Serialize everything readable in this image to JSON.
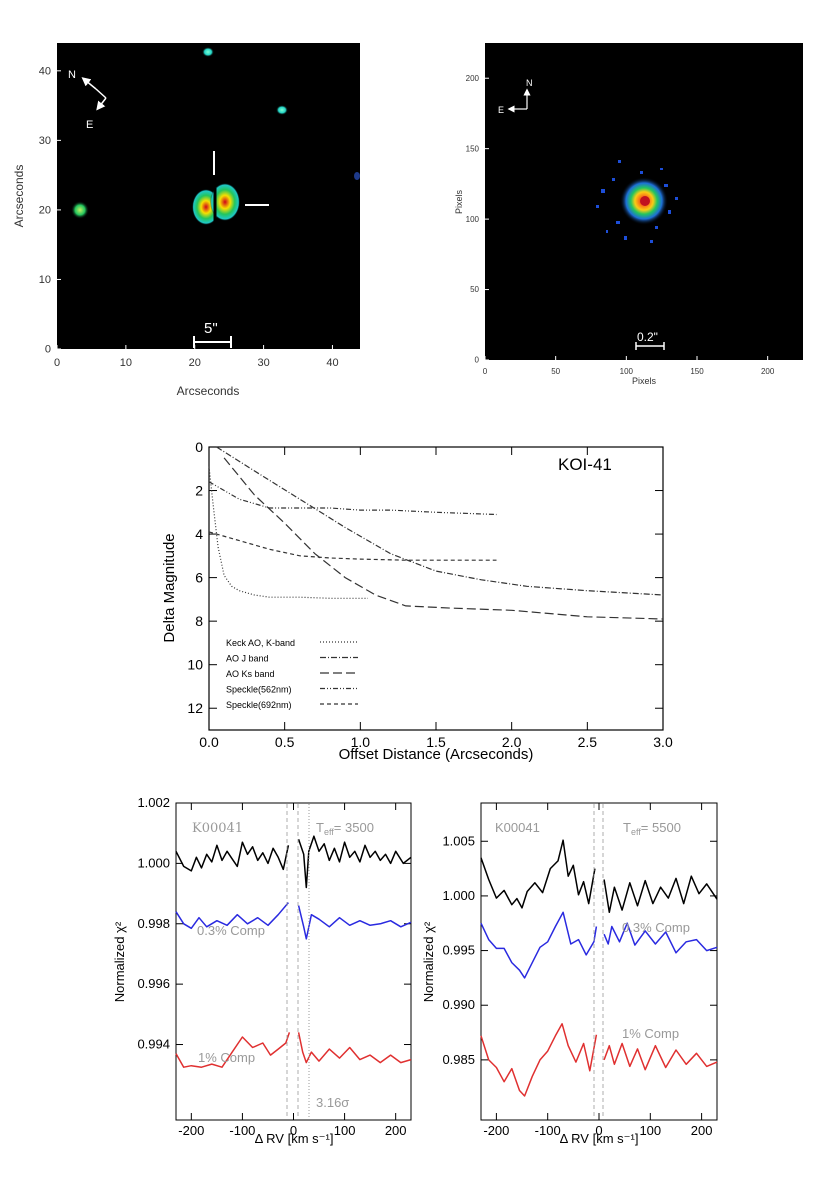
{
  "panels": {
    "image_left": {
      "xlabel": "Arcseconds",
      "ylabel": "Arcseconds",
      "xticks": [
        "0",
        "10",
        "20",
        "30",
        "40"
      ],
      "yticks": [
        "0",
        "10",
        "20",
        "30",
        "40"
      ],
      "compass": {
        "n": "N",
        "e": "E"
      },
      "scale_label": "5\""
    },
    "image_right": {
      "xlabel": "Pixels",
      "ylabel": "Pixels",
      "xticks": [
        "0",
        "50",
        "100",
        "150",
        "200"
      ],
      "yticks": [
        "0",
        "50",
        "100",
        "150",
        "200"
      ],
      "compass": {
        "n": "N",
        "e": "E"
      },
      "scale_label": "0.2\""
    }
  },
  "chart_data": [
    {
      "type": "line",
      "title": "KOI-41",
      "xlabel": "Offset Distance (Arcseconds)",
      "ylabel": "Delta Magnitude",
      "xlim": [
        0,
        3.0
      ],
      "ylim": [
        13,
        0
      ],
      "y_inverted": true,
      "xticks": [
        "0.0",
        "0.5",
        "1.0",
        "1.5",
        "2.0",
        "2.5",
        "3.0"
      ],
      "yticks": [
        "0",
        "2",
        "4",
        "6",
        "8",
        "10",
        "12"
      ],
      "legend_placement": "lower-left",
      "series": [
        {
          "name": "Keck AO, K-band",
          "style": "dotted",
          "x": [
            0.0,
            0.03,
            0.06,
            0.1,
            0.15,
            0.2,
            0.3,
            0.4,
            0.6,
            0.8,
            1.05
          ],
          "y": [
            0.9,
            2.8,
            4.6,
            5.9,
            6.4,
            6.6,
            6.8,
            6.9,
            6.9,
            6.95,
            6.95
          ]
        },
        {
          "name": "AO J band",
          "style": "dash-dot",
          "x": [
            0.05,
            0.3,
            0.6,
            0.9,
            1.2,
            1.5,
            1.8,
            2.1,
            2.5,
            3.0
          ],
          "y": [
            0.0,
            1.1,
            2.4,
            3.7,
            4.9,
            5.7,
            6.1,
            6.4,
            6.6,
            6.8
          ]
        },
        {
          "name": "AO Ks band",
          "style": "long-dash",
          "x": [
            0.1,
            0.3,
            0.5,
            0.7,
            0.9,
            1.1,
            1.3,
            1.6,
            2.0,
            2.5,
            3.0
          ],
          "y": [
            0.5,
            2.2,
            3.5,
            4.9,
            6.0,
            6.8,
            7.3,
            7.4,
            7.5,
            7.8,
            7.9
          ]
        },
        {
          "name": "Speckle(562nm)",
          "style": "dash-dot-dot",
          "x": [
            0.0,
            0.2,
            0.4,
            0.6,
            0.8,
            1.0,
            1.2,
            1.5,
            1.9
          ],
          "y": [
            1.6,
            2.4,
            2.8,
            2.8,
            2.8,
            2.9,
            2.9,
            3.0,
            3.1
          ]
        },
        {
          "name": "Speckle(692nm)",
          "style": "short-dash",
          "x": [
            0.0,
            0.2,
            0.4,
            0.6,
            0.8,
            1.0,
            1.3,
            1.6,
            1.9
          ],
          "y": [
            3.9,
            4.3,
            4.7,
            5.0,
            5.1,
            5.15,
            5.2,
            5.2,
            5.2
          ]
        }
      ]
    },
    {
      "type": "line",
      "xlabel": "Δ RV [km s⁻¹]",
      "ylabel": "Normalized χ²",
      "xlim": [
        -230,
        230
      ],
      "ylim": [
        0.9915,
        1.002
      ],
      "xticks": [
        "-200",
        "-100",
        "0",
        "100",
        "200"
      ],
      "yticks": [
        "0.994",
        "0.996",
        "0.998",
        "1.000",
        "1.002"
      ],
      "annotations": [
        "K00041",
        "T",
        "eff",
        "= 3500",
        "0.3% Comp",
        "1% Comp",
        "3.16σ"
      ],
      "series": [
        {
          "color": "#000000",
          "x": [
            -230,
            -215,
            -200,
            -190,
            -180,
            -170,
            -160,
            -150,
            -140,
            -130,
            -120,
            -110,
            -100,
            -90,
            -80,
            -70,
            -60,
            -50,
            -40,
            -30,
            -20,
            -10,
            10,
            20,
            25,
            30,
            40,
            50,
            60,
            70,
            80,
            90,
            100,
            110,
            120,
            130,
            140,
            150,
            160,
            170,
            180,
            190,
            200,
            215,
            230
          ],
          "y": [
            1.0004,
            0.9999,
            0.99975,
            1.0002,
            0.99985,
            1.0003,
            1.00005,
            1.0006,
            1.0001,
            1.0004,
            1.00015,
            0.9999,
            1.0007,
            1.0003,
            1.00055,
            1.0001,
            1.00035,
            1.0,
            1.0005,
            1.0002,
            0.9998,
            1.0006,
            1.0008,
            1.0003,
            0.9992,
            1.0004,
            1.0009,
            1.0004,
            1.00065,
            1.0001,
            1.0005,
            1.00005,
            1.0007,
            1.0002,
            1.0004,
            1.00005,
            1.0006,
            1.0002,
            1.0004,
            1.0001,
            1.0003,
            1.0,
            1.0004,
            1.0,
            1.0002
          ]
        },
        {
          "color": "#2a2ae0",
          "x": [
            -230,
            -215,
            -200,
            -185,
            -170,
            -150,
            -130,
            -110,
            -90,
            -70,
            -50,
            -30,
            -10,
            10,
            20,
            25,
            35,
            50,
            70,
            90,
            110,
            130,
            150,
            170,
            190,
            210,
            230
          ],
          "y": [
            0.9984,
            0.998,
            0.99785,
            0.9982,
            0.9979,
            0.9981,
            0.99795,
            0.9983,
            0.998,
            0.9982,
            0.99795,
            0.9983,
            0.9987,
            0.9986,
            0.9979,
            0.9975,
            0.9983,
            0.99815,
            0.9979,
            0.9982,
            0.99795,
            0.9981,
            0.99795,
            0.998,
            0.9981,
            0.9979,
            0.99805
          ]
        },
        {
          "color": "#e03030",
          "x": [
            -230,
            -215,
            -200,
            -180,
            -160,
            -140,
            -120,
            -100,
            -80,
            -60,
            -45,
            -30,
            -15,
            -8,
            10,
            18,
            25,
            35,
            50,
            70,
            90,
            110,
            130,
            150,
            170,
            190,
            210,
            230
          ],
          "y": [
            0.9937,
            0.99325,
            0.9933,
            0.99325,
            0.99335,
            0.99325,
            0.99375,
            0.99425,
            0.9939,
            0.99405,
            0.99365,
            0.99385,
            0.99405,
            0.9944,
            0.9944,
            0.99375,
            0.9934,
            0.99375,
            0.99345,
            0.99385,
            0.99355,
            0.9939,
            0.9935,
            0.99365,
            0.9934,
            0.99365,
            0.9934,
            0.9935
          ]
        }
      ]
    },
    {
      "type": "line",
      "xlabel": "Δ RV [km s⁻¹]",
      "ylabel": "Normalized χ²",
      "xlim": [
        -230,
        230
      ],
      "ylim": [
        0.9795,
        1.0085
      ],
      "xticks": [
        "-200",
        "-100",
        "0",
        "100",
        "200"
      ],
      "yticks": [
        "0.985",
        "0.990",
        "0.995",
        "1.000",
        "1.005"
      ],
      "annotations": [
        "K00041",
        "T",
        "eff",
        "= 5500",
        "0.3% Comp",
        "1% Comp"
      ],
      "series": [
        {
          "color": "#000000",
          "x": [
            -230,
            -215,
            -200,
            -185,
            -170,
            -160,
            -150,
            -140,
            -125,
            -110,
            -95,
            -80,
            -70,
            -60,
            -50,
            -40,
            -30,
            -20,
            -8,
            10,
            20,
            30,
            45,
            60,
            75,
            90,
            105,
            120,
            135,
            150,
            165,
            180,
            195,
            210,
            230
          ],
          "y": [
            1.0035,
            1.0015,
            0.9998,
            1.0005,
            0.9992,
            0.99975,
            0.9989,
            1.0004,
            1.0012,
            1.0003,
            1.0025,
            1.0032,
            1.0051,
            1.0018,
            1.0028,
            1.0001,
            1.0013,
            0.9993,
            1.0025,
            1.0015,
            0.9985,
            1.0008,
            0.9987,
            1.0012,
            0.9991,
            1.0014,
            0.9993,
            1.0008,
            0.9998,
            1.0016,
            0.9993,
            1.0018,
            1.0002,
            1.0011,
            0.9997
          ]
        },
        {
          "color": "#2a2ae0",
          "x": [
            -230,
            -215,
            -200,
            -185,
            -170,
            -155,
            -145,
            -130,
            -115,
            -100,
            -85,
            -70,
            -55,
            -40,
            -25,
            -10,
            -5,
            10,
            18,
            25,
            40,
            55,
            70,
            90,
            110,
            130,
            150,
            170,
            190,
            210,
            230
          ],
          "y": [
            0.9975,
            0.996,
            0.9952,
            0.9952,
            0.9939,
            0.9932,
            0.9925,
            0.9939,
            0.9953,
            0.9958,
            0.9972,
            0.9985,
            0.9956,
            0.996,
            0.9946,
            0.9958,
            0.9972,
            0.9965,
            0.9956,
            0.9972,
            0.9958,
            0.9975,
            0.9955,
            0.9968,
            0.9956,
            0.9967,
            0.9948,
            0.9958,
            0.996,
            0.995,
            0.9953
          ]
        },
        {
          "color": "#e03030",
          "x": [
            -230,
            -215,
            -200,
            -185,
            -170,
            -155,
            -145,
            -130,
            -115,
            -100,
            -85,
            -72,
            -60,
            -45,
            -30,
            -18,
            -5,
            10,
            20,
            30,
            45,
            60,
            75,
            90,
            110,
            130,
            150,
            170,
            190,
            210,
            230
          ],
          "y": [
            0.9872,
            0.985,
            0.9843,
            0.983,
            0.9842,
            0.9822,
            0.9817,
            0.9835,
            0.985,
            0.9858,
            0.9872,
            0.9883,
            0.9863,
            0.9848,
            0.9865,
            0.984,
            0.9873,
            0.985,
            0.9863,
            0.9846,
            0.9865,
            0.9844,
            0.986,
            0.9841,
            0.9863,
            0.9843,
            0.9859,
            0.9846,
            0.9856,
            0.9844,
            0.9848
          ]
        }
      ]
    }
  ]
}
